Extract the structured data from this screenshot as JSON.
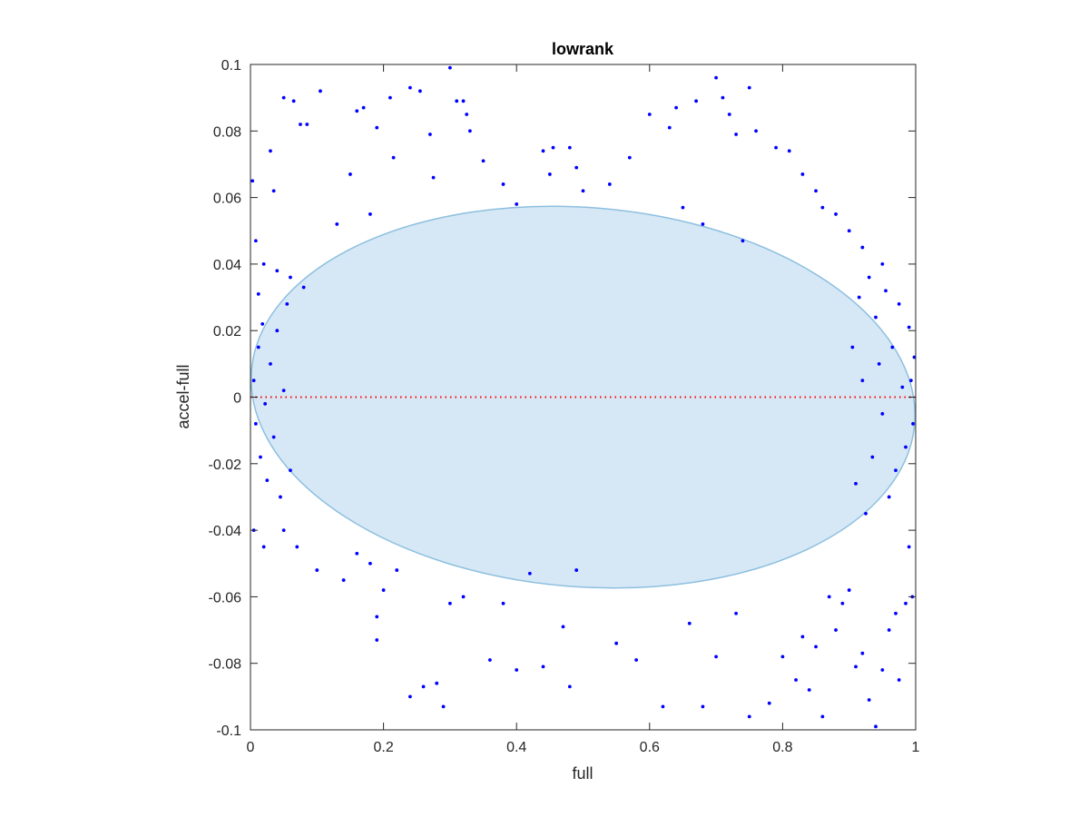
{
  "chart_data": {
    "type": "scatter",
    "title": "lowrank",
    "xlabel": "full",
    "ylabel": "accel-full",
    "xlim": [
      0,
      1
    ],
    "ylim": [
      -0.1,
      0.1
    ],
    "x_ticks": [
      0,
      0.2,
      0.4,
      0.6,
      0.8,
      1
    ],
    "x_tick_labels": [
      "0",
      "0.2",
      "0.4",
      "0.6",
      "0.8",
      "1"
    ],
    "y_ticks": [
      -0.1,
      -0.08,
      -0.06,
      -0.04,
      -0.02,
      0,
      0.02,
      0.04,
      0.06,
      0.08,
      0.1
    ],
    "y_tick_labels": [
      "-0.1",
      "-0.08",
      "-0.06",
      "-0.04",
      "-0.02",
      "0",
      "0.02",
      "0.04",
      "0.06",
      "0.08",
      "0.1"
    ],
    "grid": false,
    "reference_line": {
      "y": 0,
      "style": "dotted",
      "color": "#ff0000"
    },
    "ellipse": {
      "center": [
        0.5,
        0
      ],
      "x_radius": 0.5,
      "y_radius": 0.057,
      "tilt_y_at_x0": 0.008,
      "tilt_y_at_x1": -0.008,
      "fill": "#d6e8f5",
      "stroke": "#8dbfdf"
    },
    "marker_color": "#0000ff",
    "series": [
      {
        "points": [
          [
            0.003,
            0.065
          ],
          [
            0.008,
            0.047
          ],
          [
            0.012,
            0.031
          ],
          [
            0.03,
            0.074
          ],
          [
            0.035,
            0.062
          ],
          [
            0.05,
            0.09
          ],
          [
            0.065,
            0.089
          ],
          [
            0.075,
            0.082
          ],
          [
            0.085,
            0.082
          ],
          [
            0.105,
            0.092
          ],
          [
            0.16,
            0.086
          ],
          [
            0.17,
            0.087
          ],
          [
            0.19,
            0.081
          ],
          [
            0.21,
            0.09
          ],
          [
            0.24,
            0.093
          ],
          [
            0.255,
            0.092
          ],
          [
            0.27,
            0.079
          ],
          [
            0.275,
            0.066
          ],
          [
            0.3,
            0.099
          ],
          [
            0.31,
            0.089
          ],
          [
            0.32,
            0.089
          ],
          [
            0.325,
            0.085
          ],
          [
            0.33,
            0.08
          ],
          [
            0.44,
            0.074
          ],
          [
            0.455,
            0.075
          ],
          [
            0.45,
            0.067
          ],
          [
            0.48,
            0.075
          ],
          [
            0.49,
            0.069
          ],
          [
            0.57,
            0.072
          ],
          [
            0.6,
            0.085
          ],
          [
            0.63,
            0.081
          ],
          [
            0.64,
            0.087
          ],
          [
            0.67,
            0.089
          ],
          [
            0.7,
            0.096
          ],
          [
            0.71,
            0.09
          ],
          [
            0.72,
            0.085
          ],
          [
            0.75,
            0.093
          ],
          [
            0.76,
            0.08
          ],
          [
            0.73,
            0.079
          ],
          [
            0.79,
            0.075
          ],
          [
            0.81,
            0.074
          ],
          [
            0.83,
            0.067
          ],
          [
            0.85,
            0.062
          ],
          [
            0.86,
            0.057
          ],
          [
            0.88,
            0.055
          ],
          [
            0.9,
            0.05
          ],
          [
            0.92,
            0.045
          ],
          [
            0.95,
            0.04
          ],
          [
            0.02,
            0.04
          ],
          [
            0.04,
            0.038
          ],
          [
            0.06,
            0.036
          ],
          [
            0.08,
            0.033
          ],
          [
            0.15,
            0.067
          ],
          [
            0.13,
            0.052
          ],
          [
            0.18,
            0.055
          ],
          [
            0.215,
            0.072
          ],
          [
            0.35,
            0.071
          ],
          [
            0.38,
            0.064
          ],
          [
            0.4,
            0.058
          ],
          [
            0.5,
            0.062
          ],
          [
            0.54,
            0.064
          ],
          [
            0.65,
            0.057
          ],
          [
            0.68,
            0.052
          ],
          [
            0.74,
            0.047
          ],
          [
            0.005,
            -0.04
          ],
          [
            0.02,
            -0.045
          ],
          [
            0.05,
            -0.04
          ],
          [
            0.07,
            -0.045
          ],
          [
            0.1,
            -0.052
          ],
          [
            0.14,
            -0.055
          ],
          [
            0.16,
            -0.047
          ],
          [
            0.18,
            -0.05
          ],
          [
            0.19,
            -0.066
          ],
          [
            0.19,
            -0.073
          ],
          [
            0.2,
            -0.058
          ],
          [
            0.22,
            -0.052
          ],
          [
            0.24,
            -0.09
          ],
          [
            0.26,
            -0.087
          ],
          [
            0.28,
            -0.086
          ],
          [
            0.29,
            -0.093
          ],
          [
            0.3,
            -0.062
          ],
          [
            0.32,
            -0.06
          ],
          [
            0.36,
            -0.079
          ],
          [
            0.38,
            -0.062
          ],
          [
            0.4,
            -0.082
          ],
          [
            0.42,
            -0.053
          ],
          [
            0.44,
            -0.081
          ],
          [
            0.47,
            -0.069
          ],
          [
            0.48,
            -0.087
          ],
          [
            0.49,
            -0.052
          ],
          [
            0.55,
            -0.074
          ],
          [
            0.58,
            -0.079
          ],
          [
            0.62,
            -0.093
          ],
          [
            0.66,
            -0.068
          ],
          [
            0.68,
            -0.093
          ],
          [
            0.7,
            -0.078
          ],
          [
            0.73,
            -0.065
          ],
          [
            0.75,
            -0.096
          ],
          [
            0.78,
            -0.092
          ],
          [
            0.8,
            -0.078
          ],
          [
            0.82,
            -0.085
          ],
          [
            0.83,
            -0.072
          ],
          [
            0.84,
            -0.088
          ],
          [
            0.85,
            -0.075
          ],
          [
            0.86,
            -0.096
          ],
          [
            0.87,
            -0.06
          ],
          [
            0.88,
            -0.07
          ],
          [
            0.89,
            -0.062
          ],
          [
            0.9,
            -0.058
          ],
          [
            0.91,
            -0.081
          ],
          [
            0.92,
            -0.077
          ],
          [
            0.93,
            -0.091
          ],
          [
            0.94,
            -0.099
          ],
          [
            0.95,
            -0.082
          ],
          [
            0.96,
            -0.07
          ],
          [
            0.97,
            -0.065
          ],
          [
            0.975,
            -0.085
          ],
          [
            0.985,
            -0.062
          ],
          [
            0.99,
            -0.045
          ],
          [
            0.995,
            -0.06
          ],
          [
            0.998,
            0.012
          ],
          [
            0.996,
            -0.008
          ],
          [
            0.993,
            0.005
          ],
          [
            0.99,
            0.021
          ],
          [
            0.985,
            -0.015
          ],
          [
            0.98,
            0.003
          ],
          [
            0.975,
            0.028
          ],
          [
            0.97,
            -0.022
          ],
          [
            0.965,
            0.015
          ],
          [
            0.96,
            -0.03
          ],
          [
            0.955,
            0.032
          ],
          [
            0.95,
            -0.005
          ],
          [
            0.945,
            0.01
          ],
          [
            0.94,
            0.024
          ],
          [
            0.935,
            -0.018
          ],
          [
            0.93,
            0.036
          ],
          [
            0.925,
            -0.035
          ],
          [
            0.92,
            0.005
          ],
          [
            0.915,
            0.03
          ],
          [
            0.91,
            -0.026
          ],
          [
            0.905,
            0.015
          ],
          [
            0.005,
            0.005
          ],
          [
            0.008,
            -0.008
          ],
          [
            0.012,
            0.015
          ],
          [
            0.015,
            -0.018
          ],
          [
            0.018,
            0.022
          ],
          [
            0.022,
            -0.002
          ],
          [
            0.025,
            -0.025
          ],
          [
            0.03,
            0.01
          ],
          [
            0.035,
            -0.012
          ],
          [
            0.04,
            0.02
          ],
          [
            0.045,
            -0.03
          ],
          [
            0.05,
            0.002
          ],
          [
            0.055,
            0.028
          ],
          [
            0.06,
            -0.022
          ]
        ]
      }
    ]
  }
}
